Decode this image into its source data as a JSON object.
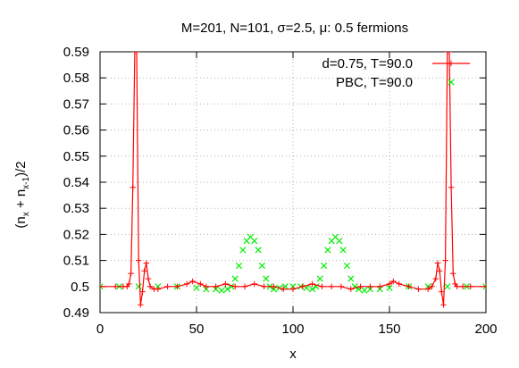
{
  "chart_data": {
    "type": "line",
    "title": "M=201, N=101, σ=2.5, μ: 0.5 fermions",
    "xlabel": "x",
    "ylabel_parts": {
      "open": "(n",
      "sub1": "x",
      "plus": " + n",
      "sub2": "x-1",
      "close": ")/2"
    },
    "xlim": [
      0,
      200
    ],
    "ylim": [
      0.49,
      0.59
    ],
    "xticks": [
      "0",
      "50",
      "100",
      "150",
      "200"
    ],
    "xtick_values": [
      0,
      50,
      100,
      150,
      200
    ],
    "yticks": [
      "0.49",
      "0.5",
      "0.51",
      "0.52",
      "0.53",
      "0.54",
      "0.55",
      "0.56",
      "0.57",
      "0.58",
      "0.59"
    ],
    "ytick_values": [
      0.49,
      0.5,
      0.51,
      0.52,
      0.53,
      0.54,
      0.55,
      0.56,
      0.57,
      0.58,
      0.59
    ],
    "grid": true,
    "legend_position": "top-right",
    "series": [
      {
        "name": "d=0.75, T=90.0",
        "color": "#ff0000",
        "marker": "plus",
        "line": true,
        "x": [
          0,
          8,
          12,
          14,
          15,
          16,
          17,
          18,
          19,
          20,
          21,
          22,
          23,
          24,
          25,
          26,
          28,
          30,
          35,
          40,
          45,
          48,
          52,
          55,
          60,
          65,
          70,
          75,
          80,
          85,
          90,
          95,
          100,
          105,
          110,
          115,
          120,
          125,
          130,
          135,
          140,
          145,
          150,
          152,
          155,
          160,
          165,
          170,
          172,
          174,
          175,
          176,
          177,
          178,
          179,
          180,
          181,
          182,
          183,
          184,
          185,
          188,
          192,
          200
        ],
        "y": [
          0.5,
          0.5,
          0.5,
          0.5,
          0.501,
          0.505,
          0.538,
          0.59,
          0.59,
          0.51,
          0.493,
          0.498,
          0.506,
          0.509,
          0.503,
          0.5,
          0.499,
          0.499,
          0.5,
          0.5,
          0.501,
          0.502,
          0.501,
          0.5,
          0.5,
          0.501,
          0.5,
          0.5,
          0.501,
          0.5,
          0.5,
          0.499,
          0.499,
          0.5,
          0.501,
          0.5,
          0.5,
          0.5,
          0.499,
          0.5,
          0.5,
          0.5,
          0.501,
          0.502,
          0.501,
          0.5,
          0.499,
          0.499,
          0.5,
          0.503,
          0.509,
          0.506,
          0.498,
          0.493,
          0.51,
          0.59,
          0.59,
          0.538,
          0.505,
          0.501,
          0.5,
          0.5,
          0.5,
          0.5
        ]
      },
      {
        "name": "PBC, T=90.0",
        "color": "#00ee00",
        "marker": "cross",
        "line": false,
        "x": [
          0,
          10,
          20,
          30,
          40,
          50,
          55,
          60,
          63,
          66,
          68,
          70,
          72,
          74,
          76,
          78,
          80,
          82,
          84,
          86,
          88,
          90,
          93,
          96,
          100,
          104,
          107,
          110,
          112,
          114,
          116,
          118,
          120,
          122,
          124,
          126,
          128,
          130,
          132,
          134,
          137,
          140,
          145,
          150,
          160,
          170,
          180,
          190,
          200
        ],
        "y": [
          0.5,
          0.5,
          0.5,
          0.5,
          0.5,
          0.4995,
          0.499,
          0.499,
          0.4985,
          0.499,
          0.5,
          0.503,
          0.508,
          0.514,
          0.5175,
          0.519,
          0.5175,
          0.514,
          0.508,
          0.503,
          0.5,
          0.499,
          0.4995,
          0.5,
          0.5,
          0.5,
          0.4995,
          0.499,
          0.5,
          0.503,
          0.508,
          0.514,
          0.5175,
          0.519,
          0.5175,
          0.514,
          0.508,
          0.503,
          0.5,
          0.499,
          0.4985,
          0.499,
          0.499,
          0.4995,
          0.5,
          0.5,
          0.5,
          0.5,
          0.5
        ]
      }
    ]
  }
}
